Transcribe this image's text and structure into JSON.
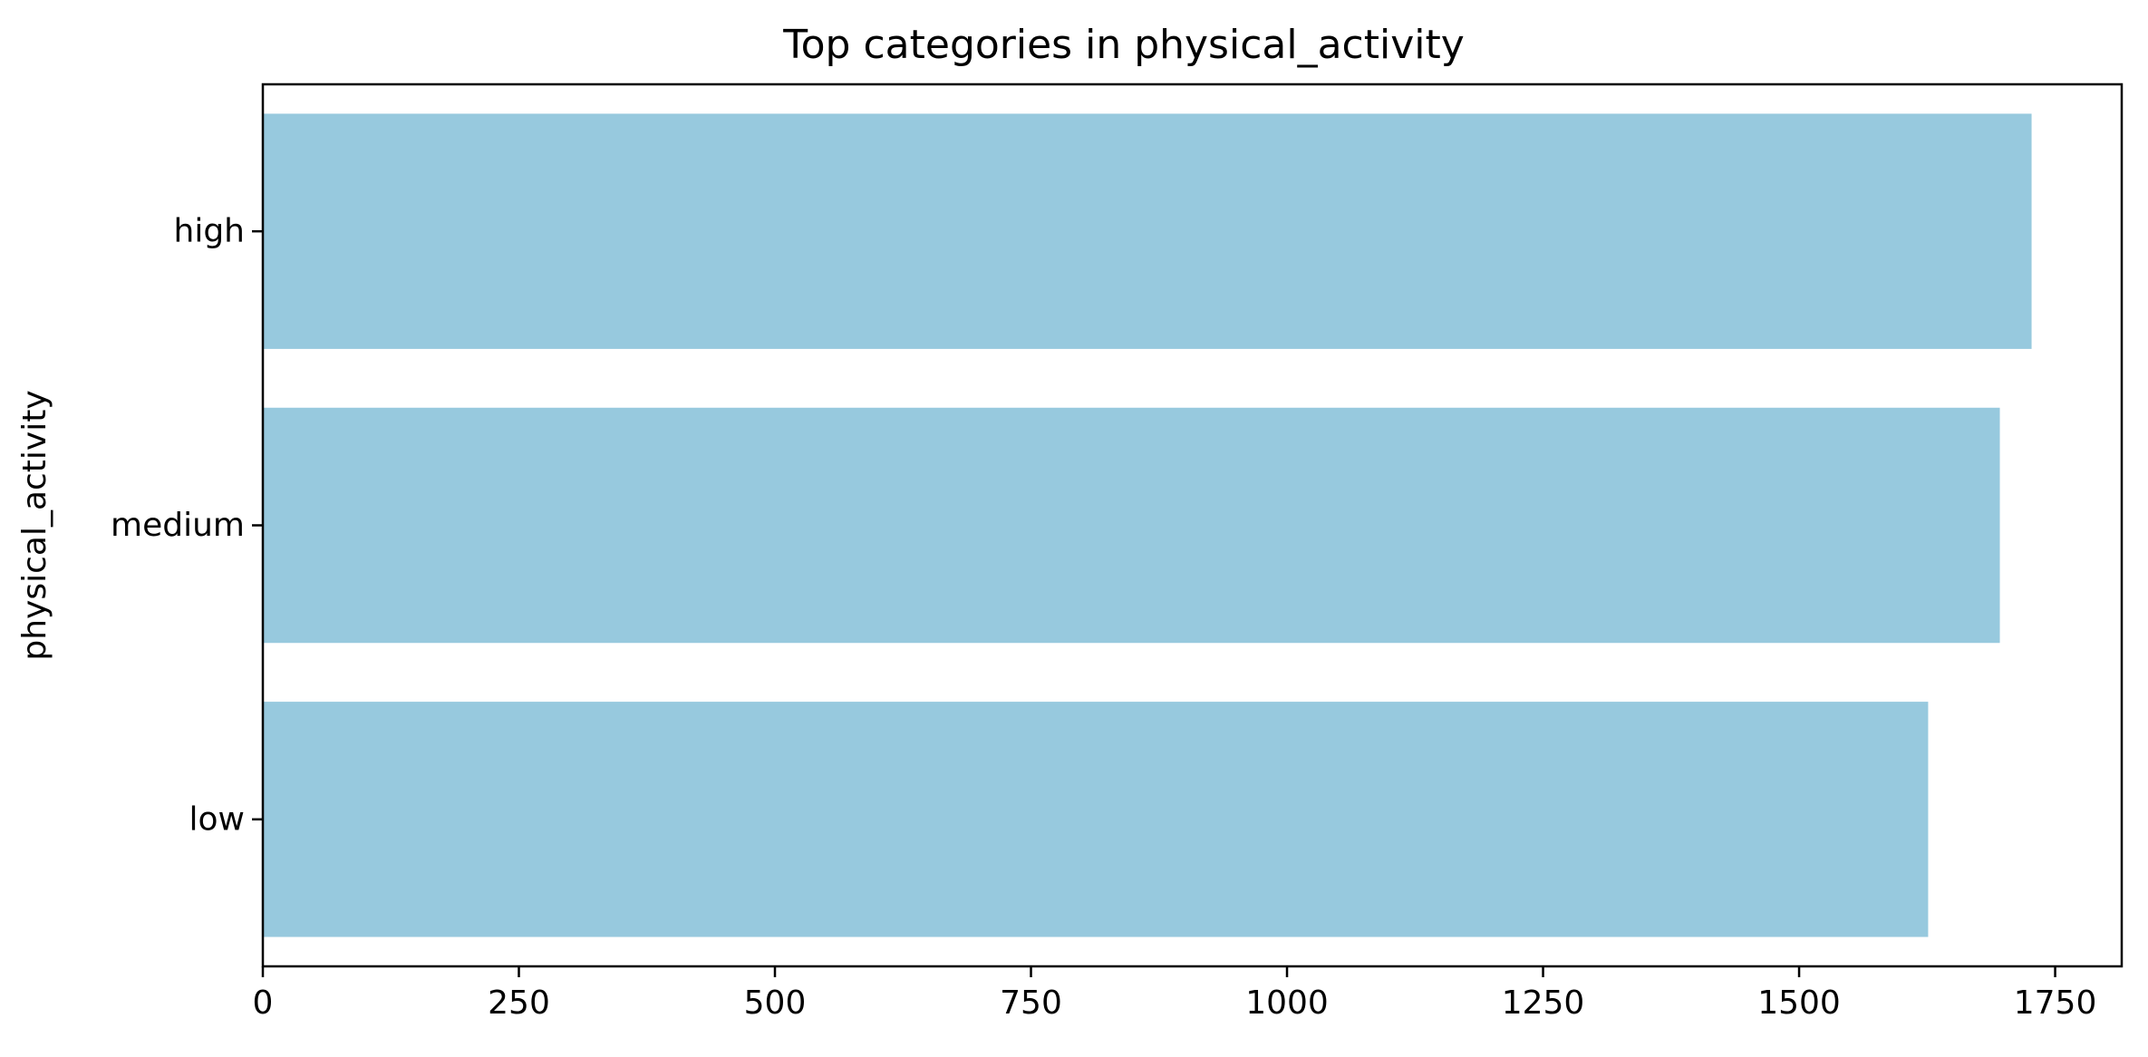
{
  "colors": {
    "bar": "#97c9de",
    "axis": "#000000",
    "background": "#ffffff"
  },
  "chart_data": {
    "type": "bar",
    "orientation": "horizontal",
    "title": "Top categories in physical_activity",
    "xlabel": "",
    "ylabel": "physical_activity",
    "categories": [
      "high",
      "medium",
      "low"
    ],
    "values": [
      1727,
      1696,
      1626
    ],
    "xlim": [
      0,
      1815
    ],
    "xticks": [
      0,
      250,
      500,
      750,
      1000,
      1250,
      1500,
      1750
    ],
    "grid": false,
    "legend": "none"
  }
}
